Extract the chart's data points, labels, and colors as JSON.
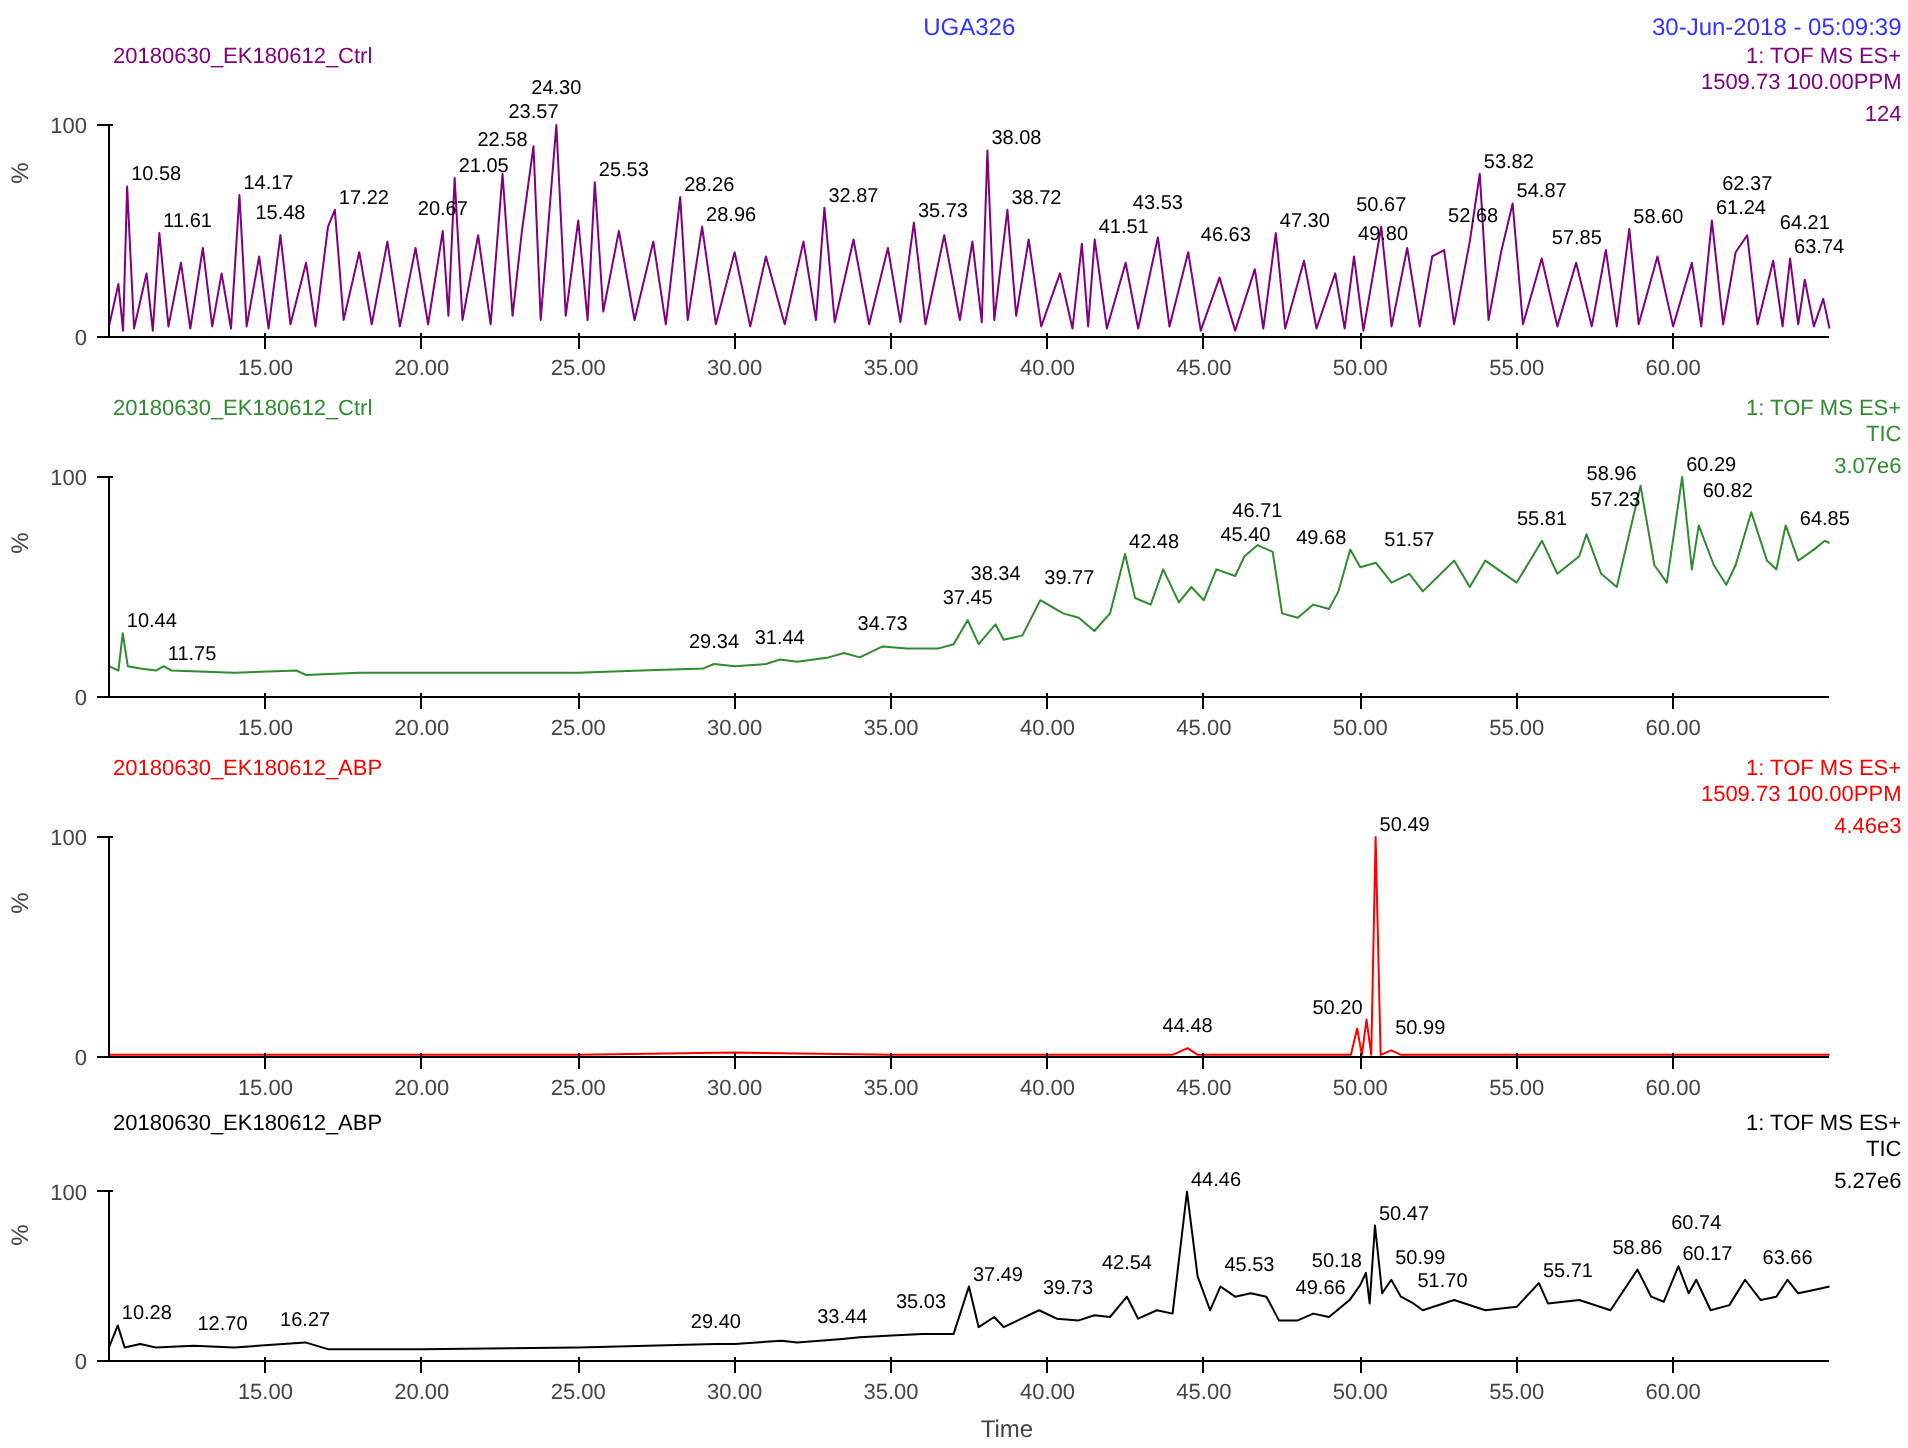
{
  "chart_data": [
    {
      "type": "line",
      "title": "UGA326",
      "subtitle": "30-Jun-2018 - 05:09:39",
      "ylabel": "%",
      "xlim": [
        10,
        65
      ],
      "ylim": [
        0,
        100
      ],
      "xticks": [
        {
          "value": 15,
          "label": "15.00"
        },
        {
          "value": 20,
          "label": "20.00"
        },
        {
          "value": 25,
          "label": "25.00"
        },
        {
          "value": 30,
          "label": "30.00"
        },
        {
          "value": 35,
          "label": "35.00"
        },
        {
          "value": 40,
          "label": "40.00"
        },
        {
          "value": 45,
          "label": "45.00"
        },
        {
          "value": 50,
          "label": "50.00"
        },
        {
          "value": 55,
          "label": "55.00"
        },
        {
          "value": 60,
          "label": "60.00"
        }
      ],
      "yticks": [
        0,
        100
      ],
      "series": [
        {
          "name": "20180630_EK180612_Ctrl",
          "color": "#800080",
          "x": [
            10.0,
            10.3,
            10.45,
            10.58,
            10.8,
            11.2,
            11.4,
            11.61,
            11.9,
            12.3,
            12.6,
            13.0,
            13.3,
            13.6,
            13.9,
            14.17,
            14.4,
            14.8,
            15.1,
            15.48,
            15.8,
            16.3,
            16.6,
            17.0,
            17.22,
            17.5,
            18.0,
            18.4,
            18.9,
            19.3,
            19.8,
            20.2,
            20.67,
            20.85,
            21.05,
            21.3,
            21.8,
            22.2,
            22.58,
            22.9,
            23.2,
            23.57,
            23.8,
            24.3,
            24.6,
            25.0,
            25.3,
            25.53,
            25.8,
            26.3,
            26.8,
            27.4,
            27.8,
            28.26,
            28.5,
            28.96,
            29.4,
            30.0,
            30.5,
            31.0,
            31.6,
            32.2,
            32.6,
            32.87,
            33.2,
            33.8,
            34.3,
            34.9,
            35.3,
            35.73,
            36.1,
            36.7,
            37.2,
            37.6,
            37.9,
            38.08,
            38.3,
            38.72,
            39.0,
            39.4,
            39.8,
            40.4,
            40.8,
            41.1,
            41.3,
            41.51,
            41.9,
            42.5,
            42.9,
            43.53,
            43.9,
            44.5,
            44.9,
            45.5,
            46.0,
            46.63,
            46.9,
            47.3,
            47.6,
            48.2,
            48.6,
            49.2,
            49.5,
            49.8,
            50.1,
            50.67,
            51.0,
            51.5,
            51.9,
            52.3,
            52.68,
            53.0,
            53.5,
            53.82,
            54.1,
            54.5,
            54.87,
            55.2,
            55.8,
            56.3,
            56.9,
            57.4,
            57.85,
            58.2,
            58.6,
            58.9,
            59.5,
            60.0,
            60.6,
            60.9,
            61.24,
            61.6,
            62.0,
            62.37,
            62.7,
            63.2,
            63.5,
            63.74,
            64.0,
            64.21,
            64.5,
            64.8,
            65.0
          ],
          "values": [
            5,
            25,
            3,
            71,
            4,
            30,
            3,
            49,
            5,
            35,
            4,
            42,
            5,
            30,
            4,
            67,
            5,
            38,
            4,
            48,
            6,
            35,
            5,
            52,
            60,
            8,
            40,
            6,
            45,
            5,
            42,
            6,
            50,
            10,
            75,
            8,
            48,
            6,
            77,
            10,
            50,
            90,
            8,
            100,
            10,
            55,
            8,
            73,
            12,
            50,
            8,
            45,
            6,
            66,
            8,
            52,
            6,
            40,
            5,
            38,
            6,
            45,
            8,
            61,
            7,
            46,
            6,
            42,
            7,
            54,
            6,
            48,
            8,
            45,
            7,
            88,
            8,
            60,
            10,
            46,
            5,
            30,
            4,
            44,
            5,
            46,
            4,
            35,
            4,
            47,
            5,
            40,
            3,
            28,
            3,
            32,
            4,
            49,
            4,
            36,
            4,
            30,
            4,
            38,
            3,
            52,
            5,
            42,
            5,
            38,
            41,
            6,
            45,
            77,
            8,
            40,
            63,
            6,
            37,
            5,
            35,
            5,
            41,
            5,
            51,
            6,
            38,
            5,
            35,
            5,
            55,
            6,
            40,
            48,
            6,
            36,
            5,
            37,
            6,
            27,
            5,
            18,
            4
          ]
        }
      ],
      "annotations": [
        "1: TOF MS ES+",
        "1509.73 100.00PPM",
        "124",
        {
          "text": "10.58",
          "x": 10.58,
          "y": 71
        },
        {
          "text": "11.61",
          "x": 11.61,
          "y": 49
        },
        {
          "text": "14.17",
          "x": 14.17,
          "y": 67
        },
        {
          "text": "15.48",
          "x": 15.48,
          "y": 48
        },
        {
          "text": "17.22",
          "x": 17.22,
          "y": 60
        },
        {
          "text": "20.67",
          "x": 20.67,
          "y": 50
        },
        {
          "text": "21.05",
          "x": 21.05,
          "y": 75
        },
        {
          "text": "22.58",
          "x": 22.58,
          "y": 77
        },
        {
          "text": "23.57",
          "x": 23.57,
          "y": 90
        },
        {
          "text": "24.30",
          "x": 24.3,
          "y": 100
        },
        {
          "text": "25.53",
          "x": 25.53,
          "y": 73
        },
        {
          "text": "28.26",
          "x": 28.26,
          "y": 66
        },
        {
          "text": "28.96",
          "x": 28.96,
          "y": 52
        },
        {
          "text": "32.87",
          "x": 32.87,
          "y": 61
        },
        {
          "text": "35.73",
          "x": 35.73,
          "y": 54
        },
        {
          "text": "38.08",
          "x": 38.08,
          "y": 88
        },
        {
          "text": "38.72",
          "x": 38.72,
          "y": 60
        },
        {
          "text": "41.51",
          "x": 41.51,
          "y": 46
        },
        {
          "text": "43.53",
          "x": 43.53,
          "y": 47
        },
        {
          "text": "46.63",
          "x": 46.63,
          "y": 32
        },
        {
          "text": "47.30",
          "x": 47.3,
          "y": 49
        },
        {
          "text": "49.80",
          "x": 49.8,
          "y": 38
        },
        {
          "text": "50.67",
          "x": 50.67,
          "y": 52
        },
        {
          "text": "52.68",
          "x": 52.68,
          "y": 41
        },
        {
          "text": "53.82",
          "x": 53.82,
          "y": 77
        },
        {
          "text": "54.87",
          "x": 54.87,
          "y": 63
        },
        {
          "text": "57.85",
          "x": 57.85,
          "y": 41
        },
        {
          "text": "58.60",
          "x": 58.6,
          "y": 51
        },
        {
          "text": "61.24",
          "x": 61.24,
          "y": 55
        },
        {
          "text": "62.37",
          "x": 62.37,
          "y": 48
        },
        {
          "text": "63.74",
          "x": 63.74,
          "y": 37
        },
        {
          "text": "64.21",
          "x": 64.21,
          "y": 27
        }
      ]
    },
    {
      "type": "line",
      "ylabel": "%",
      "xlim": [
        10,
        65
      ],
      "ylim": [
        0,
        100
      ],
      "xticks": [
        {
          "value": 15,
          "label": "15.00"
        },
        {
          "value": 20,
          "label": "20.00"
        },
        {
          "value": 25,
          "label": "25.00"
        },
        {
          "value": 30,
          "label": "30.00"
        },
        {
          "value": 35,
          "label": "35.00"
        },
        {
          "value": 40,
          "label": "40.00"
        },
        {
          "value": 45,
          "label": "45.00"
        },
        {
          "value": 50,
          "label": "50.00"
        },
        {
          "value": 55,
          "label": "55.00"
        },
        {
          "value": 60,
          "label": "60.00"
        }
      ],
      "yticks": [
        0,
        100
      ],
      "series": [
        {
          "name": "20180630_EK180612_Ctrl",
          "color": "#2e8b2e",
          "x": [
            10.0,
            10.3,
            10.44,
            10.6,
            11.0,
            11.5,
            11.75,
            12.0,
            14.0,
            16.0,
            16.3,
            18.0,
            20.0,
            22.0,
            25.0,
            27.0,
            29.0,
            29.34,
            30.0,
            31.0,
            31.44,
            32.0,
            33.0,
            33.5,
            34.0,
            34.73,
            35.5,
            36.5,
            37.0,
            37.45,
            37.8,
            38.34,
            38.6,
            39.2,
            39.77,
            40.5,
            41.0,
            41.5,
            42.0,
            42.48,
            42.8,
            43.3,
            43.7,
            44.2,
            44.6,
            45.0,
            45.4,
            46.0,
            46.3,
            46.71,
            47.2,
            47.5,
            48.0,
            48.5,
            49.0,
            49.3,
            49.68,
            50.0,
            50.5,
            51.0,
            51.57,
            52.0,
            52.5,
            53.0,
            53.5,
            54.0,
            54.5,
            55.0,
            55.81,
            56.3,
            57.0,
            57.23,
            57.7,
            58.2,
            58.96,
            59.4,
            59.8,
            60.29,
            60.6,
            60.82,
            61.3,
            61.7,
            62.0,
            62.5,
            63.0,
            63.3,
            63.6,
            64.0,
            64.5,
            64.85,
            65.0
          ],
          "values": [
            14,
            12,
            29,
            14,
            13,
            12,
            14,
            12,
            11,
            12,
            10,
            11,
            11,
            11,
            11,
            12,
            13,
            15,
            14,
            15,
            17,
            16,
            18,
            20,
            18,
            23,
            22,
            22,
            24,
            35,
            24,
            33,
            26,
            28,
            44,
            38,
            36,
            30,
            38,
            65,
            45,
            42,
            58,
            43,
            50,
            44,
            58,
            55,
            64,
            69,
            66,
            38,
            36,
            42,
            40,
            48,
            67,
            59,
            61,
            52,
            56,
            48,
            55,
            62,
            50,
            62,
            57,
            52,
            71,
            56,
            64,
            74,
            56,
            50,
            96,
            60,
            52,
            100,
            58,
            78,
            60,
            51,
            60,
            84,
            62,
            58,
            78,
            62,
            67,
            71,
            70
          ]
        }
      ],
      "annotations": [
        "1: TOF MS ES+",
        "TIC",
        "3.07e6",
        {
          "text": "10.44",
          "x": 10.44,
          "y": 29
        },
        {
          "text": "11.75",
          "x": 11.75,
          "y": 14
        },
        {
          "text": "29.34",
          "x": 29.34,
          "y": 15
        },
        {
          "text": "31.44",
          "x": 31.44,
          "y": 17
        },
        {
          "text": "34.73",
          "x": 34.73,
          "y": 23
        },
        {
          "text": "37.45",
          "x": 37.45,
          "y": 35
        },
        {
          "text": "38.34",
          "x": 38.34,
          "y": 33
        },
        {
          "text": "39.77",
          "x": 39.77,
          "y": 44
        },
        {
          "text": "42.48",
          "x": 42.48,
          "y": 65
        },
        {
          "text": "45.40",
          "x": 45.4,
          "y": 58
        },
        {
          "text": "46.71",
          "x": 46.71,
          "y": 69
        },
        {
          "text": "49.68",
          "x": 49.68,
          "y": 67
        },
        {
          "text": "51.57",
          "x": 51.57,
          "y": 56
        },
        {
          "text": "55.81",
          "x": 55.81,
          "y": 71
        },
        {
          "text": "57.23",
          "x": 57.23,
          "y": 74
        },
        {
          "text": "58.96",
          "x": 58.96,
          "y": 96
        },
        {
          "text": "60.29",
          "x": 60.29,
          "y": 100
        },
        {
          "text": "60.82",
          "x": 60.82,
          "y": 78
        },
        {
          "text": "64.85",
          "x": 64.85,
          "y": 71
        }
      ]
    },
    {
      "type": "line",
      "ylabel": "%",
      "xlim": [
        10,
        65
      ],
      "ylim": [
        0,
        100
      ],
      "xticks": [
        {
          "value": 15,
          "label": "15.00"
        },
        {
          "value": 20,
          "label": "20.00"
        },
        {
          "value": 25,
          "label": "25.00"
        },
        {
          "value": 30,
          "label": "30.00"
        },
        {
          "value": 35,
          "label": "35.00"
        },
        {
          "value": 40,
          "label": "40.00"
        },
        {
          "value": 45,
          "label": "45.00"
        },
        {
          "value": 50,
          "label": "50.00"
        },
        {
          "value": 55,
          "label": "55.00"
        },
        {
          "value": 60,
          "label": "60.00"
        }
      ],
      "yticks": [
        0,
        100
      ],
      "series": [
        {
          "name": "20180630_EK180612_ABP",
          "color": "#ff0000",
          "x": [
            10,
            15,
            20,
            25,
            30,
            35,
            40,
            44,
            44.48,
            44.8,
            49.7,
            49.9,
            50.05,
            50.2,
            50.35,
            50.49,
            50.65,
            50.99,
            51.3,
            55,
            60,
            65
          ],
          "values": [
            1,
            1,
            1,
            1,
            2,
            1,
            1,
            1,
            4,
            1,
            1,
            13,
            1,
            17,
            1,
            100,
            1,
            3,
            1,
            1,
            1,
            1
          ]
        }
      ],
      "annotations": [
        "1: TOF MS ES+",
        "1509.73 100.00PPM",
        "4.46e3",
        {
          "text": "44.48",
          "x": 44.48,
          "y": 4
        },
        {
          "text": "50.20",
          "x": 50.2,
          "y": 17
        },
        {
          "text": "50.49",
          "x": 50.49,
          "y": 100
        },
        {
          "text": "50.99",
          "x": 50.99,
          "y": 3
        }
      ]
    },
    {
      "type": "line",
      "ylabel": "%",
      "xlabel": "Time",
      "xlim": [
        10,
        65
      ],
      "ylim": [
        0,
        100
      ],
      "xticks": [
        {
          "value": 15,
          "label": "15.00"
        },
        {
          "value": 20,
          "label": "20.00"
        },
        {
          "value": 25,
          "label": "25.00"
        },
        {
          "value": 30,
          "label": "30.00"
        },
        {
          "value": 35,
          "label": "35.00"
        },
        {
          "value": 40,
          "label": "40.00"
        },
        {
          "value": 45,
          "label": "45.00"
        },
        {
          "value": 50,
          "label": "50.00"
        },
        {
          "value": 55,
          "label": "55.00"
        },
        {
          "value": 60,
          "label": "60.00"
        }
      ],
      "yticks": [
        0,
        100
      ],
      "series": [
        {
          "name": "20180630_EK180612_ABP",
          "color": "#000000",
          "x": [
            10.0,
            10.28,
            10.5,
            11.0,
            11.5,
            12.7,
            14.0,
            16.27,
            17.0,
            20.0,
            25.0,
            29.4,
            30.0,
            31.5,
            32.0,
            33.44,
            34.0,
            35.03,
            36.0,
            37.0,
            37.49,
            37.8,
            38.3,
            38.6,
            39.73,
            40.3,
            41.0,
            41.5,
            42.0,
            42.54,
            42.9,
            43.5,
            44.0,
            44.46,
            44.8,
            45.2,
            45.53,
            46.0,
            46.5,
            47.0,
            47.4,
            48.0,
            48.5,
            49.0,
            49.66,
            50.0,
            50.18,
            50.3,
            50.47,
            50.7,
            50.99,
            51.3,
            51.7,
            52.0,
            53.0,
            54.0,
            55.0,
            55.71,
            56.0,
            57.0,
            58.0,
            58.86,
            59.3,
            59.7,
            60.17,
            60.5,
            60.74,
            61.2,
            61.8,
            62.3,
            62.8,
            63.3,
            63.66,
            64.0,
            64.5,
            65.0
          ],
          "values": [
            8,
            21,
            8,
            10,
            8,
            9,
            8,
            11,
            7,
            7,
            8,
            10,
            10,
            12,
            11,
            13,
            14,
            15,
            16,
            16,
            44,
            20,
            26,
            20,
            30,
            25,
            24,
            27,
            26,
            38,
            25,
            30,
            28,
            100,
            50,
            30,
            44,
            38,
            40,
            38,
            24,
            24,
            28,
            26,
            36,
            45,
            52,
            34,
            80,
            40,
            48,
            38,
            34,
            30,
            36,
            30,
            32,
            46,
            34,
            36,
            30,
            54,
            38,
            35,
            56,
            40,
            48,
            30,
            33,
            48,
            36,
            38,
            48,
            40,
            42,
            44
          ]
        }
      ],
      "annotations": [
        "1: TOF MS ES+",
        "TIC",
        "5.27e6",
        {
          "text": "10.28",
          "x": 10.28,
          "y": 21
        },
        {
          "text": "12.70",
          "x": 12.7,
          "y": 9
        },
        {
          "text": "16.27",
          "x": 16.27,
          "y": 11
        },
        {
          "text": "29.40",
          "x": 29.4,
          "y": 10
        },
        {
          "text": "33.44",
          "x": 33.44,
          "y": 13
        },
        {
          "text": "35.03",
          "x": 35.03,
          "y": 15
        },
        {
          "text": "37.49",
          "x": 37.49,
          "y": 44
        },
        {
          "text": "39.73",
          "x": 39.73,
          "y": 30
        },
        {
          "text": "42.54",
          "x": 42.54,
          "y": 38
        },
        {
          "text": "44.46",
          "x": 44.46,
          "y": 100
        },
        {
          "text": "45.53",
          "x": 45.53,
          "y": 44
        },
        {
          "text": "49.66",
          "x": 49.66,
          "y": 36
        },
        {
          "text": "50.18",
          "x": 50.18,
          "y": 52
        },
        {
          "text": "50.47",
          "x": 50.47,
          "y": 80
        },
        {
          "text": "50.99",
          "x": 50.99,
          "y": 48
        },
        {
          "text": "51.70",
          "x": 51.7,
          "y": 34
        },
        {
          "text": "55.71",
          "x": 55.71,
          "y": 46
        },
        {
          "text": "58.86",
          "x": 58.86,
          "y": 54
        },
        {
          "text": "60.17",
          "x": 60.17,
          "y": 56
        },
        {
          "text": "60.74",
          "x": 60.74,
          "y": 48
        },
        {
          "text": "63.66",
          "x": 63.66,
          "y": 48
        }
      ]
    }
  ]
}
